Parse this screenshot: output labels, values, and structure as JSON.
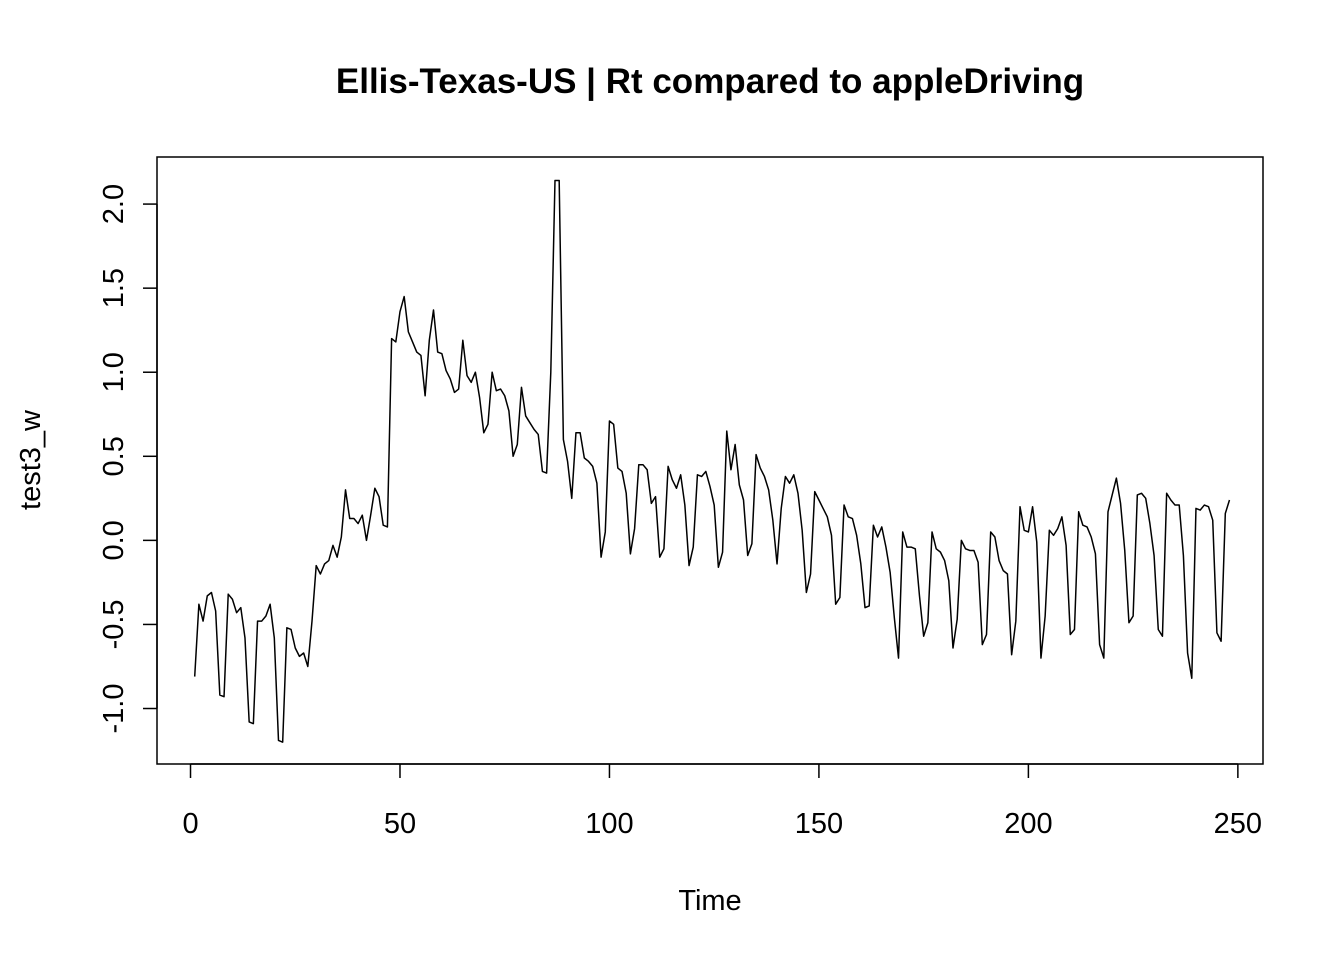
{
  "chart_data": {
    "type": "line",
    "title": "Ellis-Texas-US | Rt compared to appleDriving",
    "xlabel": "Time",
    "ylabel": "test3_w",
    "xlim": [
      -8,
      256
    ],
    "ylim": [
      -1.33,
      2.28
    ],
    "x_ticks": [
      0,
      50,
      100,
      150,
      200,
      250
    ],
    "y_ticks": [
      -1.0,
      -0.5,
      0.0,
      0.5,
      1.0,
      1.5,
      2.0
    ],
    "y_tick_labels": [
      "-1.0",
      "-0.5",
      "0.0",
      "0.5",
      "1.0",
      "1.5",
      "2.0"
    ],
    "x_tick_labels": [
      "0",
      "50",
      "100",
      "150",
      "200",
      "250"
    ],
    "grid": false,
    "series": [
      {
        "x_start": 1,
        "values": [
          -0.81,
          -0.38,
          -0.48,
          -0.33,
          -0.31,
          -0.42,
          -0.92,
          -0.93,
          -0.32,
          -0.35,
          -0.43,
          -0.4,
          -0.58,
          -1.08,
          -1.09,
          -0.48,
          -0.48,
          -0.45,
          -0.38,
          -0.58,
          -1.19,
          -1.2,
          -0.52,
          -0.53,
          -0.64,
          -0.69,
          -0.67,
          -0.75,
          -0.48,
          -0.15,
          -0.2,
          -0.14,
          -0.12,
          -0.03,
          -0.1,
          0.02,
          0.3,
          0.13,
          0.13,
          0.1,
          0.15,
          0.0,
          0.15,
          0.31,
          0.26,
          0.09,
          0.08,
          1.2,
          1.18,
          1.36,
          1.45,
          1.24,
          1.18,
          1.12,
          1.1,
          0.86,
          1.19,
          1.37,
          1.12,
          1.11,
          1.01,
          0.96,
          0.88,
          0.9,
          1.19,
          0.98,
          0.94,
          1.0,
          0.85,
          0.64,
          0.69,
          1.0,
          0.89,
          0.9,
          0.86,
          0.77,
          0.5,
          0.57,
          0.91,
          0.74,
          0.7,
          0.66,
          0.63,
          0.41,
          0.4,
          1.0,
          2.14,
          2.14,
          0.6,
          0.47,
          0.25,
          0.64,
          0.64,
          0.49,
          0.47,
          0.44,
          0.34,
          -0.1,
          0.05,
          0.71,
          0.69,
          0.43,
          0.41,
          0.28,
          -0.08,
          0.07,
          0.45,
          0.45,
          0.42,
          0.22,
          0.26,
          -0.1,
          -0.05,
          0.44,
          0.36,
          0.31,
          0.39,
          0.21,
          -0.15,
          -0.04,
          0.39,
          0.38,
          0.41,
          0.32,
          0.21,
          -0.16,
          -0.07,
          0.65,
          0.42,
          0.57,
          0.33,
          0.24,
          -0.09,
          -0.02,
          0.51,
          0.43,
          0.38,
          0.3,
          0.12,
          -0.14,
          0.19,
          0.38,
          0.34,
          0.39,
          0.28,
          0.06,
          -0.31,
          -0.2,
          0.29,
          0.24,
          0.19,
          0.14,
          0.03,
          -0.38,
          -0.34,
          0.21,
          0.14,
          0.13,
          0.03,
          -0.14,
          -0.4,
          -0.39,
          0.09,
          0.02,
          0.08,
          -0.04,
          -0.19,
          -0.46,
          -0.7,
          0.05,
          -0.04,
          -0.04,
          -0.05,
          -0.33,
          -0.57,
          -0.49,
          0.05,
          -0.05,
          -0.07,
          -0.12,
          -0.24,
          -0.64,
          -0.47,
          0.0,
          -0.05,
          -0.06,
          -0.06,
          -0.13,
          -0.62,
          -0.56,
          0.05,
          0.02,
          -0.12,
          -0.18,
          -0.2,
          -0.68,
          -0.48,
          0.2,
          0.06,
          0.05,
          0.2,
          -0.01,
          -0.7,
          -0.45,
          0.06,
          0.03,
          0.07,
          0.14,
          -0.03,
          -0.56,
          -0.53,
          0.17,
          0.09,
          0.08,
          0.02,
          -0.08,
          -0.62,
          -0.7,
          0.17,
          0.27,
          0.37,
          0.22,
          -0.06,
          -0.49,
          -0.45,
          0.27,
          0.28,
          0.25,
          0.1,
          -0.09,
          -0.53,
          -0.57,
          0.28,
          0.24,
          0.21,
          0.21,
          -0.09,
          -0.67,
          -0.82,
          0.19,
          0.18,
          0.21,
          0.2,
          0.12,
          -0.55,
          -0.6,
          0.16,
          0.24
        ]
      }
    ]
  }
}
